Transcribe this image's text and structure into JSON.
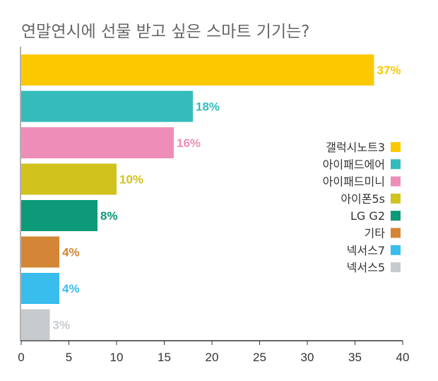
{
  "chart_data": {
    "type": "bar",
    "orientation": "horizontal",
    "title": "연말연시에 선물 받고 싶은 스마트 기기는?",
    "xlabel": "",
    "ylabel": "",
    "xlim": [
      0,
      40
    ],
    "x_ticks": [
      "0",
      "5",
      "10",
      "15",
      "20",
      "25",
      "30",
      "35",
      "40"
    ],
    "grid": false,
    "legend_position": "right",
    "categories": [
      "갤럭시노트3",
      "아이패드에어",
      "아이패드미니",
      "아이폰5s",
      "LG G2",
      "기타",
      "넥서스7",
      "넥서스5"
    ],
    "values": [
      37,
      18,
      16,
      10,
      8,
      4,
      4,
      3
    ],
    "value_labels": [
      "37%",
      "18%",
      "16%",
      "10%",
      "8%",
      "4%",
      "4%",
      "3%"
    ],
    "colors": [
      "#fcc900",
      "#36bbbb",
      "#ee8eb8",
      "#d1c21d",
      "#0c9a78",
      "#d48636",
      "#38bdec",
      "#c7cbce"
    ]
  }
}
